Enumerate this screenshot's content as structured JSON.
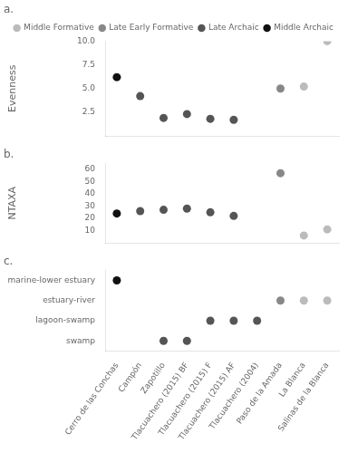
{
  "chart_data": [
    {
      "type": "scatter",
      "title": "a.",
      "ylabel": "Evenness",
      "categories": [
        "Cerro de las Conchas",
        "Campón",
        "Zapotillo",
        "Tlacuachero (2015) BF",
        "Tlacuachero (2015) F",
        "Tlacuachero (2015) AF",
        "Tlacuachero (2004)",
        "Paso de la Amada",
        "La Blanca",
        "Salinas de la Blanca"
      ],
      "series": [
        {
          "name": "Middle Formative",
          "color": "#bbbbbb",
          "marker": "circle",
          "values": [
            null,
            null,
            null,
            null,
            null,
            null,
            null,
            null,
            5.2,
            10.0
          ]
        },
        {
          "name": "Late Early Formative",
          "color": "#888888",
          "marker": "circle",
          "values": [
            null,
            null,
            null,
            null,
            null,
            null,
            null,
            5.0,
            null,
            null
          ]
        },
        {
          "name": "Late Archaic",
          "color": "#555555",
          "marker": "circle",
          "values": [
            null,
            4.2,
            1.9,
            2.3,
            1.8,
            1.7,
            null,
            null,
            null,
            null
          ]
        },
        {
          "name": "Middle Archaic",
          "color": "#111111",
          "marker": "circle",
          "values": [
            6.2,
            null,
            null,
            null,
            null,
            null,
            null,
            null,
            null,
            null
          ]
        }
      ],
      "ylim": [
        0,
        10
      ],
      "yticks": [
        2.5,
        {
          "value": 5,
          "label": "5.0"
        },
        7.5,
        {
          "value": 10,
          "label": "10.0"
        }
      ],
      "grid": false,
      "legend": "upper right",
      "tick_labels": "y"
    },
    {
      "type": "scatter",
      "title": "b.",
      "ylabel": "NTAXA",
      "categories": [
        "Cerro de las Conchas",
        "Campón",
        "Zapotillo",
        "Tlacuachero (2015) BF",
        "Tlacuachero (2015) F",
        "Tlacuachero (2015) AF",
        "Tlacuachero (2004)",
        "Paso de la Amada",
        "La Blanca",
        "Salinas de la Blanca"
      ],
      "series": [
        {
          "name": "Middle Formative",
          "color": "#bbbbbb",
          "marker": "circle",
          "values": [
            null,
            null,
            null,
            null,
            null,
            null,
            null,
            null,
            6,
            11
          ]
        },
        {
          "name": "Late Early Formative",
          "color": "#888888",
          "marker": "circle",
          "values": [
            null,
            null,
            null,
            null,
            null,
            null,
            null,
            57,
            null,
            null
          ]
        },
        {
          "name": "Late Archaic",
          "color": "#555555",
          "marker": "circle",
          "values": [
            null,
            26,
            27,
            28,
            25,
            22,
            null,
            null,
            null,
            null
          ]
        },
        {
          "name": "Middle Archaic",
          "color": "#111111",
          "marker": "circle",
          "values": [
            24,
            null,
            null,
            null,
            null,
            null,
            null,
            null,
            null,
            null
          ]
        }
      ],
      "ylim": [
        0,
        65
      ],
      "yticks": [
        10,
        20,
        30,
        40,
        50,
        60
      ],
      "grid": false,
      "tick_labels": "y"
    },
    {
      "type": "scatter",
      "title": "c.",
      "categories": [
        "Cerro de las Conchas",
        "Campón",
        "Zapotillo",
        "Tlacuachero (2015) BF",
        "Tlacuachero (2015) F",
        "Tlacuachero (2015) AF",
        "Tlacuachero (2004)",
        "Paso de la Amada",
        "La Blanca",
        "Salinas de la Blanca"
      ],
      "series": [
        {
          "name": "Middle Formative",
          "color": "#bbbbbb",
          "marker": "circle",
          "values": [
            null,
            null,
            null,
            null,
            null,
            null,
            null,
            null,
            2,
            2
          ]
        },
        {
          "name": "Late Early Formative",
          "color": "#888888",
          "marker": "circle",
          "values": [
            null,
            null,
            null,
            null,
            null,
            null,
            null,
            2,
            null,
            null
          ]
        },
        {
          "name": "Late Archaic",
          "color": "#555555",
          "marker": "circle",
          "values": [
            null,
            null,
            0,
            0,
            1,
            1,
            1,
            null,
            null,
            null
          ]
        },
        {
          "name": "Middle Archaic",
          "color": "#111111",
          "marker": "circle",
          "values": [
            3,
            null,
            null,
            null,
            null,
            null,
            null,
            null,
            null,
            null
          ]
        }
      ],
      "ylim": [
        -0.5,
        3.5
      ],
      "yticks": [
        {
          "value": 0,
          "label": "swamp"
        },
        {
          "value": 1,
          "label": "lagoon-swamp"
        },
        {
          "value": 2,
          "label": "estuary-river"
        },
        {
          "value": 3,
          "label": "marine-lower estuary"
        }
      ],
      "grid": false
    }
  ]
}
